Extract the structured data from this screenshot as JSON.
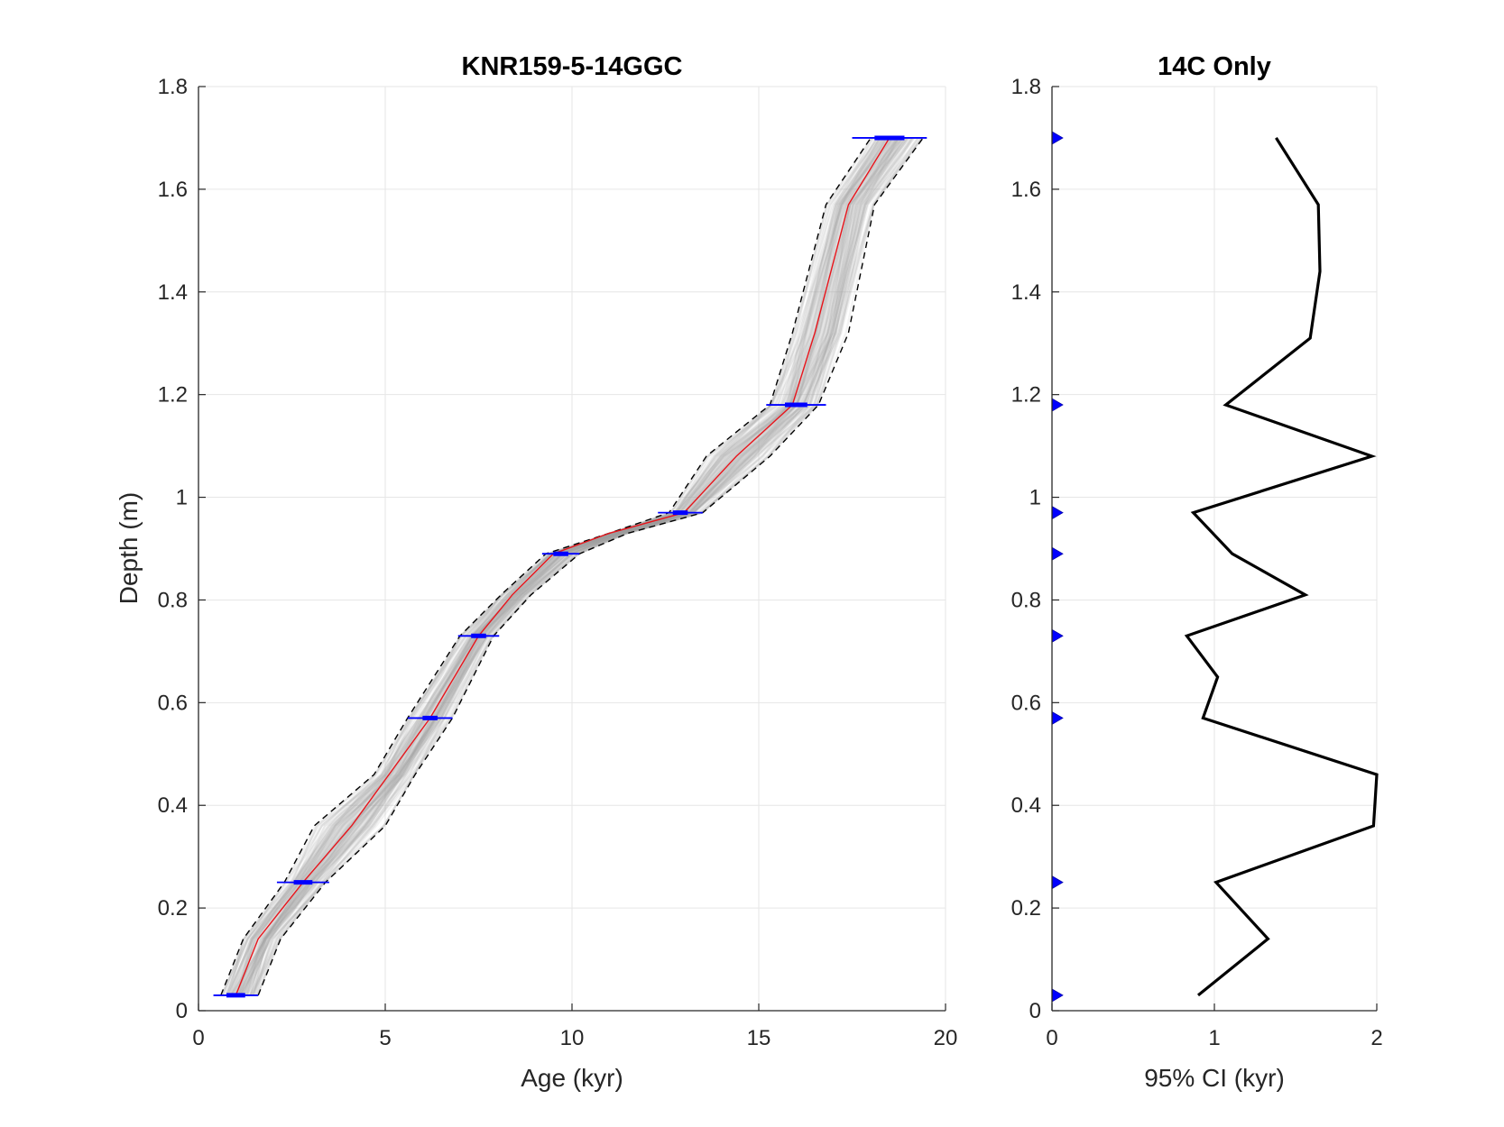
{
  "chart_data": [
    {
      "type": "line",
      "title": "KNR159-5-14GGC",
      "xlabel": "Age (kyr)",
      "ylabel": "Depth (m)",
      "xlim": [
        0,
        20
      ],
      "ylim": [
        0,
        1.8
      ],
      "xticks": [
        "0",
        "5",
        "10",
        "15",
        "20"
      ],
      "yticks": [
        "0",
        "0.2",
        "0.4",
        "0.6",
        "0.8",
        "1",
        "1.2",
        "1.4",
        "1.6",
        "1.8"
      ],
      "grid": true,
      "colors": {
        "median": "#e8141b",
        "bounds": "#000000",
        "ensemble": "#9e9e9e",
        "dates": "#0000ff"
      },
      "series": [
        {
          "style": "red solid",
          "x": [
            1.0,
            1.6,
            2.8,
            4.1,
            5.1,
            6.2,
            7.5,
            8.4,
            9.5,
            11.0,
            13.0,
            14.4,
            15.9,
            16.5,
            17.4,
            18.5
          ],
          "y": [
            0.03,
            0.14,
            0.25,
            0.36,
            0.46,
            0.57,
            0.73,
            0.81,
            0.89,
            0.93,
            0.97,
            1.08,
            1.18,
            1.32,
            1.57,
            1.7
          ]
        },
        {
          "style": "black dashed",
          "x": [
            0.6,
            1.2,
            2.3,
            3.1,
            4.7,
            5.6,
            7.0,
            8.1,
            9.3,
            11.0,
            12.6,
            13.6,
            15.3,
            15.9,
            16.8,
            18.0
          ],
          "y": [
            0.03,
            0.14,
            0.25,
            0.36,
            0.46,
            0.57,
            0.73,
            0.81,
            0.89,
            0.93,
            0.97,
            1.08,
            1.18,
            1.32,
            1.57,
            1.7
          ]
        },
        {
          "style": "black dashed",
          "x": [
            1.6,
            2.2,
            3.4,
            5.0,
            5.8,
            6.8,
            7.9,
            8.9,
            10.2,
            11.5,
            13.5,
            15.3,
            16.6,
            17.4,
            18.1,
            19.4
          ],
          "y": [
            0.03,
            0.14,
            0.25,
            0.36,
            0.46,
            0.57,
            0.73,
            0.81,
            0.89,
            0.93,
            0.97,
            1.08,
            1.18,
            1.32,
            1.57,
            1.7
          ]
        }
      ],
      "dates": [
        {
          "age": 1.0,
          "depth": 0.03,
          "err_outer": 0.6,
          "err_inner": 0.25
        },
        {
          "age": 2.8,
          "depth": 0.25,
          "err_outer": 0.7,
          "err_inner": 0.25
        },
        {
          "age": 6.2,
          "depth": 0.57,
          "err_outer": 0.6,
          "err_inner": 0.2
        },
        {
          "age": 7.5,
          "depth": 0.73,
          "err_outer": 0.55,
          "err_inner": 0.2
        },
        {
          "age": 9.7,
          "depth": 0.89,
          "err_outer": 0.5,
          "err_inner": 0.2
        },
        {
          "age": 12.9,
          "depth": 0.97,
          "err_outer": 0.6,
          "err_inner": 0.2
        },
        {
          "age": 16.0,
          "depth": 1.18,
          "err_outer": 0.8,
          "err_inner": 0.3
        },
        {
          "age": 18.5,
          "depth": 1.7,
          "err_outer": 1.0,
          "err_inner": 0.4
        }
      ]
    },
    {
      "type": "line",
      "title": "14C Only",
      "xlabel": "95% CI (kyr)",
      "ylabel": "",
      "xlim": [
        0,
        2
      ],
      "ylim": [
        0,
        1.8
      ],
      "xticks": [
        "0",
        "1",
        "2"
      ],
      "yticks": [
        "0",
        "0.2",
        "0.4",
        "0.6",
        "0.8",
        "1",
        "1.2",
        "1.4",
        "1.6",
        "1.8"
      ],
      "grid": true,
      "colors": {
        "line": "#000000",
        "markers": "#0000ff"
      },
      "series": [
        {
          "style": "black solid",
          "x": [
            0.9,
            1.33,
            1.01,
            1.98,
            2.0,
            0.93,
            1.02,
            0.83,
            1.56,
            1.11,
            0.87,
            1.97,
            1.07,
            1.59,
            1.65,
            1.64,
            1.38
          ],
          "y": [
            0.03,
            0.14,
            0.25,
            0.36,
            0.46,
            0.57,
            0.65,
            0.73,
            0.81,
            0.89,
            0.97,
            1.08,
            1.18,
            1.31,
            1.44,
            1.57,
            1.7
          ]
        }
      ],
      "marker_depths": [
        0.03,
        0.25,
        0.57,
        0.73,
        0.89,
        0.97,
        1.18,
        1.7
      ]
    }
  ]
}
